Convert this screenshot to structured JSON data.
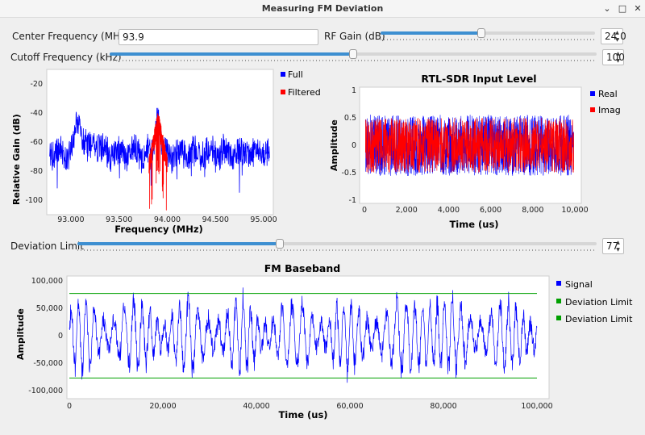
{
  "window": {
    "title": "Measuring FM Deviation",
    "buttons": [
      "⌄",
      "□",
      "✕"
    ]
  },
  "controls": {
    "center_freq": {
      "label": "Center Frequency (MHz):",
      "value": "93.9"
    },
    "rf_gain": {
      "label": "RF Gain (dB)",
      "value": "24.0",
      "slider_fraction": 0.47
    },
    "cutoff": {
      "label": "Cutoff Frequency (kHz)",
      "value": "100",
      "slider_fraction": 0.5
    },
    "deviation": {
      "label": "Deviation Limit",
      "value": "77",
      "slider_fraction": 0.39
    }
  },
  "spectrum": {
    "xlabel": "Frequency (MHz)",
    "ylabel": "Relative Gain (dB)",
    "xticks": [
      "93.000",
      "93.500",
      "94.000",
      "94.500",
      "95.000"
    ],
    "yticks": [
      "-20",
      "-40",
      "-60",
      "-80",
      "-100"
    ],
    "legend": [
      "Full",
      "Filtered"
    ],
    "colors": {
      "full": "#0000ff",
      "filtered": "#ff0000"
    }
  },
  "rtl": {
    "title": "RTL-SDR Input Level",
    "xlabel": "Time (us)",
    "ylabel": "Amplitude",
    "xticks": [
      "0",
      "2,000",
      "4,000",
      "6,000",
      "8,000",
      "10,000"
    ],
    "yticks": [
      "1",
      "0.5",
      "0",
      "-0.5",
      "-1"
    ],
    "legend": [
      "Real",
      "Imag"
    ],
    "colors": {
      "real": "#0000ff",
      "imag": "#ff0000"
    }
  },
  "baseband": {
    "title": "FM Baseband",
    "xlabel": "Time (us)",
    "ylabel": "Amplitude",
    "xticks": [
      "0",
      "20,000",
      "40,000",
      "60,000",
      "80,000",
      "100,000"
    ],
    "yticks": [
      "100,000",
      "50,000",
      "0",
      "-50,000",
      "-100,000"
    ],
    "legend": [
      "Signal",
      "Deviation Limit",
      "Deviation Limit"
    ],
    "colors": {
      "signal": "#0000ff",
      "limit": "#00a000"
    }
  },
  "chart_data": [
    {
      "type": "line",
      "title": "",
      "xlabel": "Frequency (MHz)",
      "ylabel": "Relative Gain (dB)",
      "xlim": [
        92.75,
        95.1
      ],
      "ylim": [
        -110,
        -10
      ],
      "series": [
        {
          "name": "Full",
          "x": [
            92.8,
            93.0,
            93.1,
            93.2,
            93.5,
            93.8,
            93.9,
            94.0,
            94.3,
            94.6,
            95.0
          ],
          "values": [
            -60,
            -55,
            -40,
            -65,
            -65,
            -65,
            -35,
            -65,
            -65,
            -68,
            -62
          ]
        },
        {
          "name": "Filtered",
          "x": [
            93.8,
            93.85,
            93.9,
            93.95,
            94.0
          ],
          "values": [
            -70,
            -60,
            -40,
            -60,
            -80
          ]
        }
      ]
    },
    {
      "type": "line",
      "title": "RTL-SDR Input Level",
      "xlabel": "Time (us)",
      "ylabel": "Amplitude",
      "xlim": [
        0,
        10000
      ],
      "ylim": [
        -1,
        1
      ],
      "series": [
        {
          "name": "Real",
          "x": [
            0,
            10000
          ],
          "values": [
            -0.55,
            0.55
          ]
        },
        {
          "name": "Imag",
          "x": [
            0,
            10000
          ],
          "values": [
            -0.5,
            0.5
          ]
        }
      ]
    },
    {
      "type": "line",
      "title": "FM Baseband",
      "xlabel": "Time (us)",
      "ylabel": "Amplitude",
      "xlim": [
        0,
        100000
      ],
      "ylim": [
        -100000,
        100000
      ],
      "series": [
        {
          "name": "Signal",
          "x": [
            0,
            100000
          ],
          "values": [
            -85000,
            85000
          ]
        },
        {
          "name": "Deviation Limit",
          "x": [
            0,
            100000
          ],
          "values": [
            77000,
            77000
          ]
        },
        {
          "name": "Deviation Limit",
          "x": [
            0,
            100000
          ],
          "values": [
            -77000,
            -77000
          ]
        }
      ]
    }
  ]
}
